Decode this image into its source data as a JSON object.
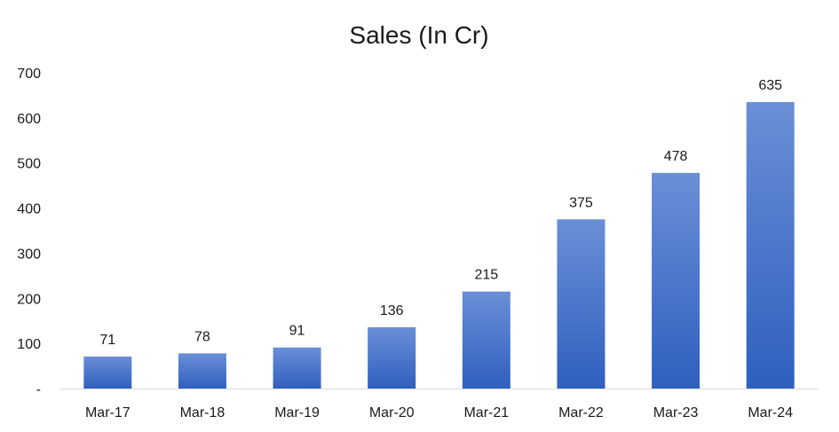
{
  "chart_data": {
    "type": "bar",
    "title": "Sales (In Cr)",
    "categories": [
      "Mar-17",
      "Mar-18",
      "Mar-19",
      "Mar-20",
      "Mar-21",
      "Mar-22",
      "Mar-23",
      "Mar-24"
    ],
    "values": [
      71,
      78,
      91,
      136,
      215,
      375,
      478,
      635
    ],
    "data_labels": [
      "71",
      "78",
      "91",
      "136",
      "215",
      "375",
      "478",
      "635"
    ],
    "y_ticks": [
      "-",
      "100",
      "200",
      "300",
      "400",
      "500",
      "600",
      "700"
    ],
    "y_tick_values": [
      0,
      100,
      200,
      300,
      400,
      500,
      600,
      700
    ],
    "ylim": [
      0,
      700
    ],
    "xlabel": "",
    "ylabel": "",
    "grid": false,
    "legend": "none",
    "bar_color_top": "#6a8fd6",
    "bar_color_bottom": "#2f5fbf",
    "axis_color": "#d9d9d9"
  }
}
